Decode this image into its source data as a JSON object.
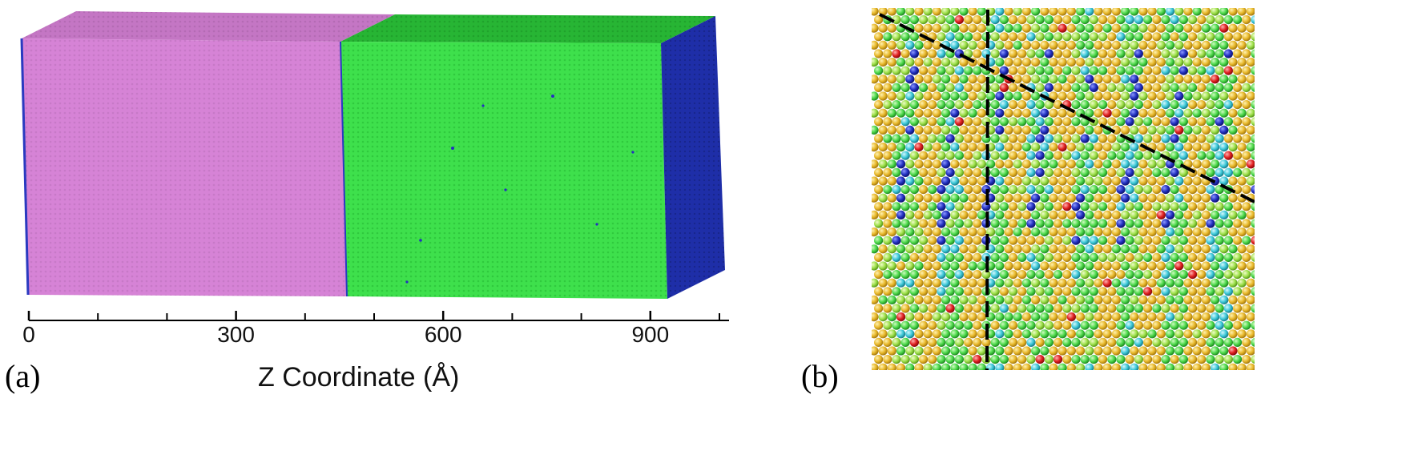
{
  "panels": {
    "a": {
      "label": "(a)"
    },
    "b": {
      "label": "(b)"
    }
  },
  "axis": {
    "title": "Z Coordinate (Å)",
    "range": [
      0,
      1000
    ],
    "major_ticks": [
      0,
      300,
      600,
      900
    ],
    "minor_ticks": [
      100,
      200,
      400,
      500,
      700,
      800,
      1000
    ],
    "tick_labels": [
      "0",
      "300",
      "600",
      "900"
    ]
  },
  "slab": {
    "region_1_color": "#d580d5",
    "region_1_top_color": "#c878c8",
    "region_2_color": "#3ddd4a",
    "region_2_top_color": "#2fb83c",
    "side_face_color": "#1f2fa8",
    "interface_z": 465,
    "end_z": 935
  },
  "lattice": {
    "colors": {
      "gold": "#e8b82a",
      "green": "#4cd84a",
      "light_green": "#9de04a",
      "cyan": "#3cc8d8",
      "blue": "#2230c0",
      "red": "#e02020"
    }
  }
}
